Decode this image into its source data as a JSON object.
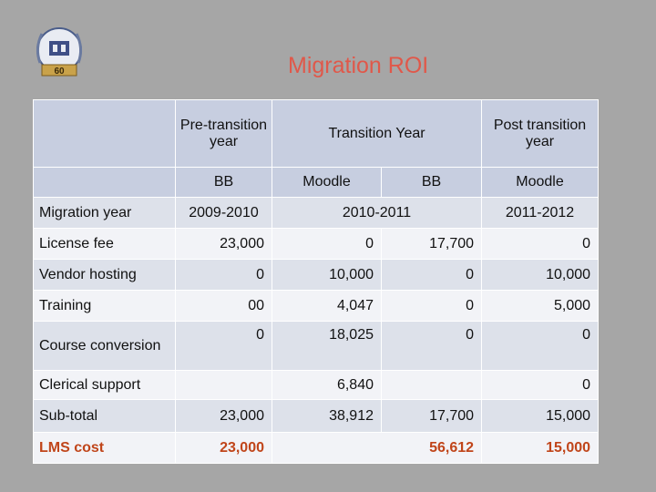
{
  "slide": {
    "title": "Migration ROI",
    "logo_badge": "60"
  },
  "table": {
    "header": {
      "pre": "Pre-transition year",
      "transition": "Transition Year",
      "post": "Post transition year"
    },
    "subheader": {
      "bb1": "BB",
      "moodle1": "Moodle",
      "bb2": "BB",
      "moodle2": "Moodle"
    },
    "migration": {
      "label": "Migration year",
      "pre": "2009-2010",
      "transition": "2010-2011",
      "post": "2011-2012"
    },
    "license": {
      "label": "License fee",
      "pre": "23,000",
      "moodle": "0",
      "bb": "17,700",
      "post": "0"
    },
    "vendor": {
      "label": "Vendor hosting",
      "pre": "0",
      "moodle": "10,000",
      "bb": "0",
      "post": "10,000"
    },
    "training": {
      "label": "Training",
      "pre": "00",
      "moodle": "4,047",
      "bb": "0",
      "post": "5,000"
    },
    "course": {
      "label": "Course conversion",
      "pre": "0",
      "moodle": "18,025",
      "bb": "0",
      "post": "0"
    },
    "clerical": {
      "label": "Clerical support",
      "moodle": "6,840",
      "post": "0"
    },
    "subtotal": {
      "label": "Sub-total",
      "pre": "23,000",
      "moodle": "38,912",
      "bb": "17,700",
      "post": "15,000"
    },
    "lms": {
      "label": "LMS cost",
      "pre": "23,000",
      "transition": "56,612",
      "post": "15,000"
    }
  },
  "colors": {
    "title": "#e0584a",
    "lms": "#c0451a",
    "background": "#a6a6a6"
  }
}
